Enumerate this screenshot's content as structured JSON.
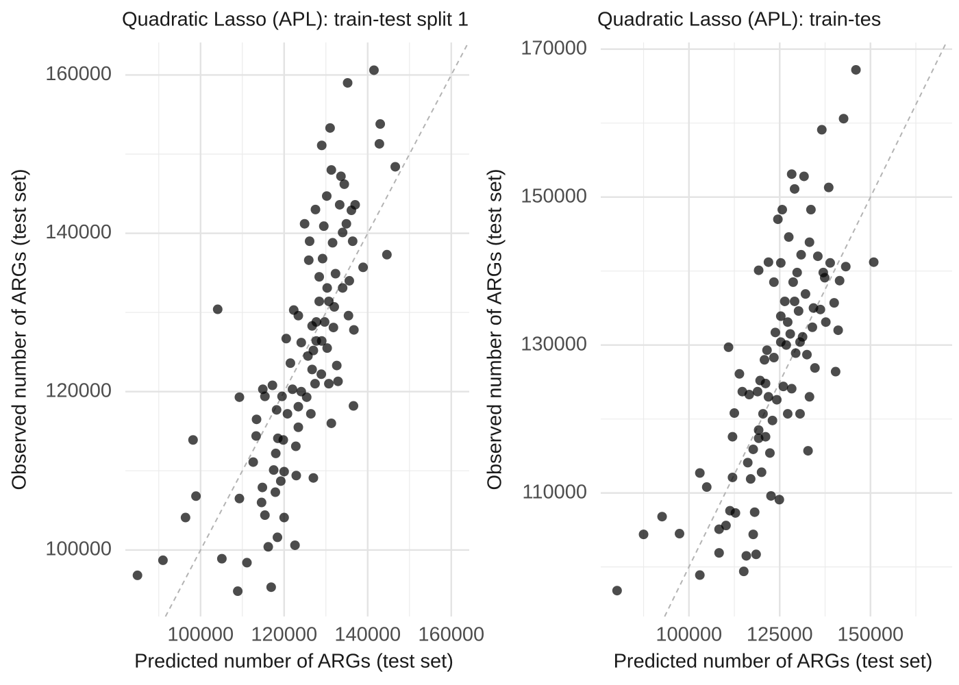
{
  "chart_data": [
    {
      "type": "scatter",
      "title": "Quadratic Lasso (APL): train-test split 1",
      "x_label": "Predicted number of ARGs (test set)",
      "y_label": "Observed number of ARGs (test set)",
      "color": "#000000",
      "alpha": 0.7,
      "grid": true,
      "reference_line": "y=x",
      "xlim": [
        82000,
        164300
      ],
      "ylim": [
        91600,
        164100
      ],
      "xticks": [
        100000,
        120000,
        140000,
        160000
      ],
      "yticks": [
        100000,
        120000,
        140000,
        160000
      ],
      "x_minor_ticks": [
        90000,
        110000,
        130000,
        150000
      ],
      "y_minor_ticks": [
        110000,
        130000,
        150000
      ],
      "x": [
        84900,
        91000,
        96400,
        98200,
        98900,
        104100,
        105100,
        109300,
        109300,
        108900,
        111100,
        112600,
        113400,
        113300,
        114800,
        114600,
        115400,
        114900,
        115400,
        116200,
        116900,
        117500,
        117200,
        117900,
        118000,
        118400,
        118200,
        118500,
        119200,
        119500,
        120000,
        119800,
        120000,
        120500,
        120800,
        121500,
        122000,
        122300,
        122600,
        122800,
        122900,
        123400,
        123400,
        124100,
        124900,
        125400,
        125900,
        126100,
        126400,
        126700,
        127000,
        127000,
        127400,
        127500,
        127700,
        128400,
        128400,
        128900,
        129000,
        129200,
        129500,
        129700,
        130200,
        130300,
        130700,
        131000,
        131300,
        131300,
        131600,
        131800,
        132300,
        132600,
        132900,
        133300,
        133600,
        134000,
        134400,
        134900,
        135200,
        135400,
        135600,
        136100,
        136400,
        136600,
        136700,
        137000,
        138900,
        141500,
        143000,
        142800,
        144600,
        146600,
        132000,
        129000,
        124100,
        125700,
        123400,
        127700,
        130700,
        134000,
        130300,
        126700
      ],
      "values": [
        96800,
        98700,
        104100,
        113900,
        106800,
        130400,
        98900,
        106500,
        119300,
        94800,
        98400,
        111100,
        116500,
        114400,
        107900,
        106000,
        104400,
        120300,
        119400,
        100400,
        95300,
        110100,
        120800,
        107300,
        112200,
        101600,
        117700,
        114100,
        108700,
        119400,
        104100,
        113900,
        109900,
        126700,
        117200,
        123600,
        120300,
        130300,
        100600,
        113100,
        109400,
        118100,
        115500,
        120000,
        141200,
        119300,
        136600,
        139000,
        117200,
        128300,
        125200,
        109100,
        121000,
        143000,
        126400,
        134500,
        131400,
        122200,
        151100,
        136800,
        140900,
        128800,
        144700,
        133100,
        121000,
        153300,
        148000,
        116000,
        138800,
        128100,
        134900,
        123300,
        121300,
        143600,
        147200,
        140100,
        146200,
        141200,
        159000,
        129600,
        134000,
        142900,
        139000,
        118200,
        127800,
        143600,
        135700,
        160600,
        153800,
        151300,
        137300,
        148400,
        130700,
        126400,
        126200,
        124500,
        129600,
        128800,
        131400,
        133100,
        125500,
        122800
      ]
    },
    {
      "type": "scatter",
      "title": "Quadratic Lasso (APL): train-tes",
      "x_label": "Predicted number of ARGs (test set)",
      "y_label": "Observed number of ARGs (test set)",
      "color": "#000000",
      "alpha": 0.7,
      "grid": true,
      "reference_line": "y=x",
      "xlim": [
        75700,
        172500
      ],
      "ylim": [
        93300,
        170900
      ],
      "xticks": [
        100000,
        125000,
        150000
      ],
      "yticks": [
        110000,
        130000,
        150000,
        170000
      ],
      "x_minor_ticks": [
        87500,
        112500,
        137500,
        162500
      ],
      "y_minor_ticks": [
        100000,
        120000,
        140000,
        160000
      ],
      "x": [
        80200,
        87500,
        92600,
        97400,
        103000,
        103000,
        104900,
        108300,
        108300,
        110200,
        110900,
        111300,
        112000,
        112000,
        112500,
        112800,
        113900,
        114700,
        115100,
        115800,
        116200,
        116600,
        117000,
        117700,
        117700,
        118100,
        118500,
        118900,
        119200,
        119200,
        119600,
        120000,
        120400,
        120800,
        121100,
        121500,
        121900,
        122300,
        122600,
        123000,
        123400,
        123800,
        124200,
        124500,
        124900,
        125300,
        125300,
        125700,
        126000,
        126400,
        126800,
        127200,
        127500,
        127900,
        128300,
        128300,
        128700,
        129100,
        129400,
        129800,
        130200,
        130600,
        130900,
        131300,
        131700,
        132100,
        132500,
        132800,
        133200,
        133200,
        133600,
        134000,
        134700,
        135500,
        136200,
        136600,
        137000,
        137400,
        137700,
        138500,
        138900,
        140000,
        140400,
        141100,
        141500,
        142600,
        143200,
        146000,
        150900,
        125300,
        123400,
        127200,
        129100,
        121100,
        121900,
        130600,
        134300,
        119200
      ],
      "values": [
        96800,
        104400,
        106800,
        104500,
        112700,
        98900,
        110800,
        101900,
        105100,
        105600,
        129700,
        107600,
        112100,
        117600,
        120800,
        107300,
        126100,
        123700,
        99400,
        101500,
        114100,
        123300,
        111900,
        115900,
        104400,
        107400,
        101700,
        123700,
        140100,
        118500,
        125200,
        112800,
        120700,
        128000,
        117600,
        129300,
        141200,
        115400,
        109600,
        119800,
        138500,
        131700,
        122600,
        147000,
        109100,
        141100,
        133900,
        148300,
        124400,
        135900,
        130000,
        120700,
        144600,
        131500,
        124100,
        153100,
        138500,
        151100,
        128900,
        139800,
        134600,
        120700,
        142200,
        131100,
        152800,
        136900,
        128700,
        115700,
        143900,
        123000,
        148300,
        132400,
        126900,
        142000,
        134800,
        159100,
        139800,
        139100,
        133100,
        151300,
        141100,
        135700,
        126400,
        132000,
        138700,
        160600,
        140600,
        167200,
        141200,
        130400,
        128300,
        133100,
        135900,
        124800,
        123000,
        130400,
        135000,
        117400
      ]
    }
  ]
}
